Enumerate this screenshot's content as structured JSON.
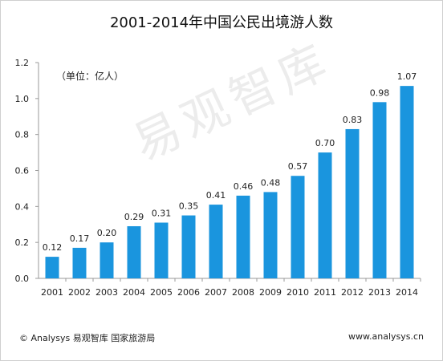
{
  "chart_data": {
    "type": "bar",
    "title": "2001-2014年中国公民出境游人数",
    "unit_note": "（单位：亿人）",
    "categories": [
      "2001",
      "2002",
      "2003",
      "2004",
      "2005",
      "2006",
      "2007",
      "2008",
      "2009",
      "2010",
      "2011",
      "2012",
      "2013",
      "2014"
    ],
    "values": [
      0.12,
      0.17,
      0.2,
      0.29,
      0.31,
      0.35,
      0.41,
      0.46,
      0.48,
      0.57,
      0.7,
      0.83,
      0.98,
      1.07
    ],
    "value_labels": [
      "0.12",
      "0.17",
      "0.20",
      "0.29",
      "0.31",
      "0.35",
      "0.41",
      "0.46",
      "0.48",
      "0.57",
      "0.70",
      "0.83",
      "0.98",
      "1.07"
    ],
    "ylim": [
      0,
      1.2
    ],
    "yticks": [
      "0.0",
      "0.2",
      "0.4",
      "0.6",
      "0.8",
      "1.0",
      "1.2"
    ],
    "bar_color": "#1a95de",
    "grid": false,
    "legend": "none"
  },
  "watermark": "易观智库",
  "footer": {
    "source": "© Analysys 易观智库 国家旅游局",
    "site": "www.analysys.cn"
  }
}
